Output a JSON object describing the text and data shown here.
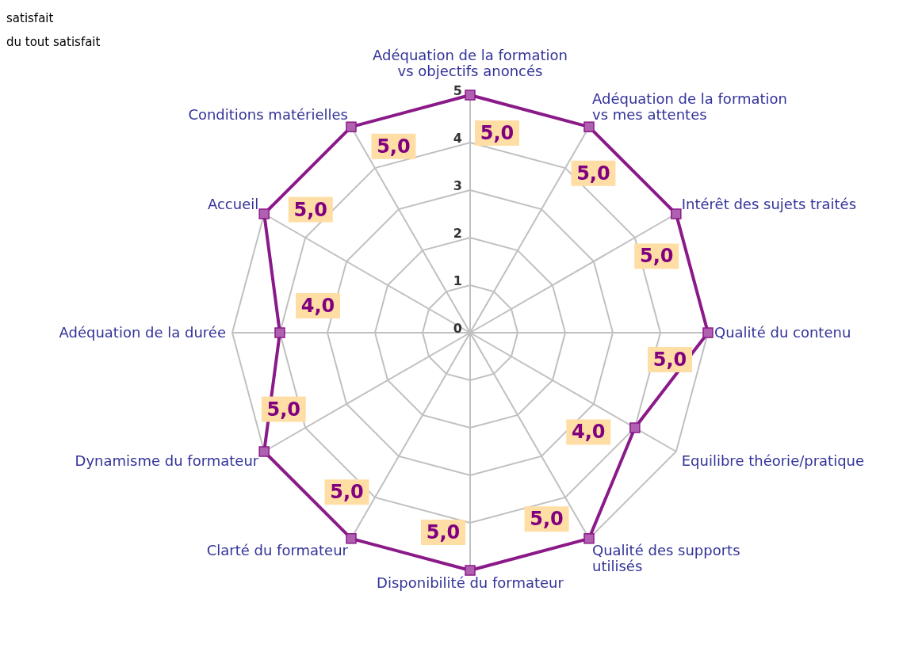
{
  "chart_data": {
    "type": "radar",
    "categories": [
      "Adéquation de la formation vs objectifs anoncés",
      "Adéquation de la formation vs mes attentes",
      "Intérêt des sujets traités",
      "Qualité du contenu",
      "Equilibre théorie/pratique",
      "Qualité des supports utilisés",
      "Disponibilité du formateur",
      "Clarté du formateur",
      "Dynamisme du formateur",
      "Adéquation de la durée",
      "Accueil",
      "Conditions matérielles"
    ],
    "series": [
      {
        "color": "#8b1a89",
        "values": [
          5,
          5,
          5,
          5,
          4,
          5,
          5,
          5,
          5,
          4,
          5,
          5
        ],
        "value_labels": [
          "5,0",
          "5,0",
          "5,0",
          "5,0",
          "4,0",
          "5,0",
          "5,0",
          "5,0",
          "5,0",
          "4,0",
          "5,0",
          "5,0"
        ]
      }
    ],
    "ylim": [
      0,
      5
    ],
    "yticks": [
      0,
      1,
      2,
      3,
      4,
      5
    ],
    "grid": true,
    "marker": "square",
    "annotations": [
      "satisfait",
      "du tout satisfait"
    ]
  }
}
